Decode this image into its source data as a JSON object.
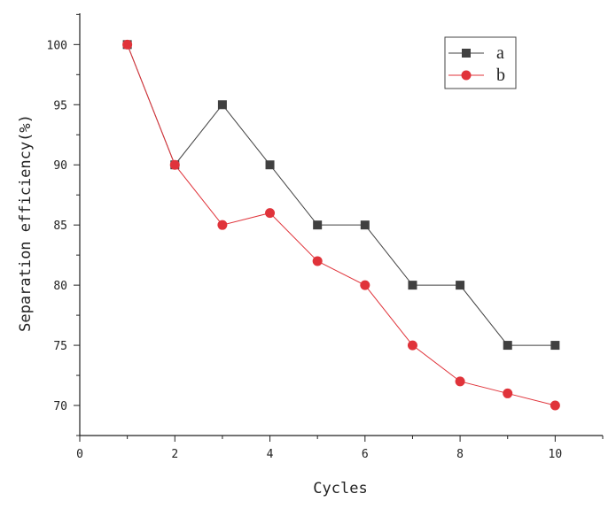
{
  "chart_data": {
    "type": "line",
    "title": "",
    "xlabel": "Cycles",
    "ylabel": "Separation efficiency(%)",
    "x": [
      1,
      2,
      3,
      4,
      5,
      6,
      7,
      8,
      9,
      10
    ],
    "xlim": [
      0,
      11
    ],
    "ylim": [
      67.5,
      102.6
    ],
    "xticks": [
      0,
      2,
      4,
      6,
      8,
      10
    ],
    "yticks": [
      70,
      75,
      80,
      85,
      90,
      95,
      100
    ],
    "grid": false,
    "legend_position": "top-right",
    "series": [
      {
        "name": "a",
        "marker": "square",
        "color": "#404040",
        "values": [
          100,
          90,
          95,
          90,
          85,
          85,
          80,
          80,
          75,
          75
        ]
      },
      {
        "name": "b",
        "marker": "circle",
        "color": "#e0333a",
        "values": [
          100,
          90,
          85,
          86,
          82,
          80,
          75,
          72,
          71,
          70
        ]
      }
    ]
  }
}
